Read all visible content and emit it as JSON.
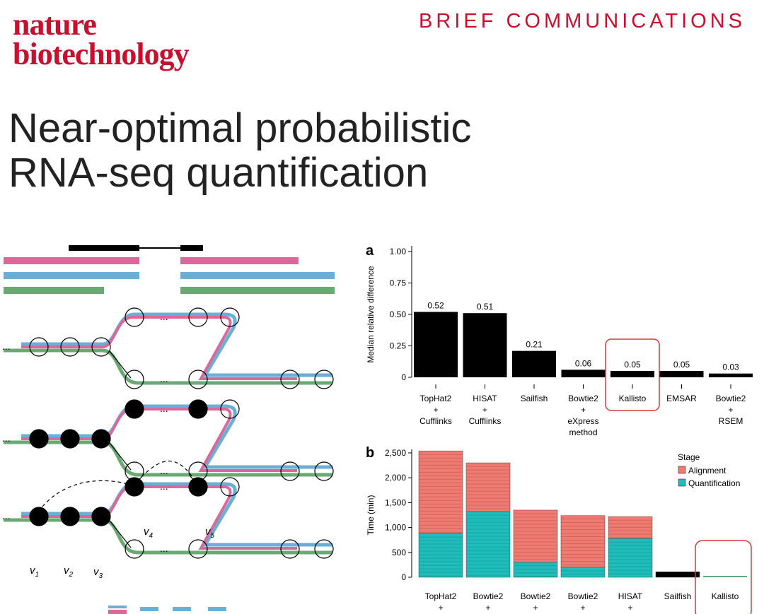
{
  "journal": {
    "line1": "nature",
    "line2": "biotechnology"
  },
  "section": "BRIEF COMMUNICATIONS",
  "title": {
    "line1": "Near-optimal probabilistic",
    "line2": "RNA-seq quantification"
  },
  "colors": {
    "brand": "#c8102e",
    "pink": "#d9699a",
    "blue": "#6baed6",
    "green": "#6aa874",
    "alignment": "#ef7a72",
    "quantification": "#1fbcbc",
    "highlight": "#d8383a"
  },
  "diagram": {
    "node_labels": [
      "v1",
      "v2",
      "v3",
      "v4",
      "v5"
    ],
    "ellipsis": "..."
  },
  "chart_data": [
    {
      "type": "bar",
      "panel_label": "a",
      "ylabel": "Median relative difference",
      "ylim": [
        0,
        1.0
      ],
      "yticks": [
        "0",
        "0.25",
        "0.50",
        "0.75",
        "1.00"
      ],
      "categories": [
        [
          "TopHat2",
          "+",
          "Cufflinks"
        ],
        [
          "HISAT",
          "+",
          "Cufflinks"
        ],
        [
          "Sailfish"
        ],
        [
          "Bowtie2",
          "+",
          "eXpress",
          "method"
        ],
        [
          "Kallisto"
        ],
        [
          "EMSAR"
        ],
        [
          "Bowtie2",
          "+",
          "RSEM"
        ]
      ],
      "values": [
        0.52,
        0.51,
        0.21,
        0.06,
        0.05,
        0.05,
        0.03
      ],
      "value_labels": [
        "0.52",
        "0.51",
        "0.21",
        "0.06",
        "0.05",
        "0.05",
        "0.03"
      ],
      "highlight_category": "Kallisto"
    },
    {
      "type": "bar",
      "stacked": true,
      "panel_label": "b",
      "ylabel": "Time (min)",
      "ylim": [
        0,
        2500
      ],
      "yticks": [
        "0",
        "500",
        "1,000",
        "1,500",
        "2,000",
        "2,500"
      ],
      "categories": [
        [
          "TopHat2",
          "+"
        ],
        [
          "Bowtie2",
          "+"
        ],
        [
          "Bowtie2",
          "+"
        ],
        [
          "Bowtie2",
          "+"
        ],
        [
          "HISAT",
          "+"
        ],
        [
          "Sailfish"
        ],
        [
          "Kallisto"
        ]
      ],
      "legend_title": "Stage",
      "legend_position": "top-right",
      "series": [
        {
          "name": "Quantification",
          "values": [
            880,
            1320,
            300,
            200,
            780,
            110,
            10
          ]
        },
        {
          "name": "Alignment",
          "values": [
            1660,
            980,
            1050,
            1040,
            440,
            0,
            0
          ]
        }
      ],
      "highlight_category": "Kallisto"
    }
  ]
}
